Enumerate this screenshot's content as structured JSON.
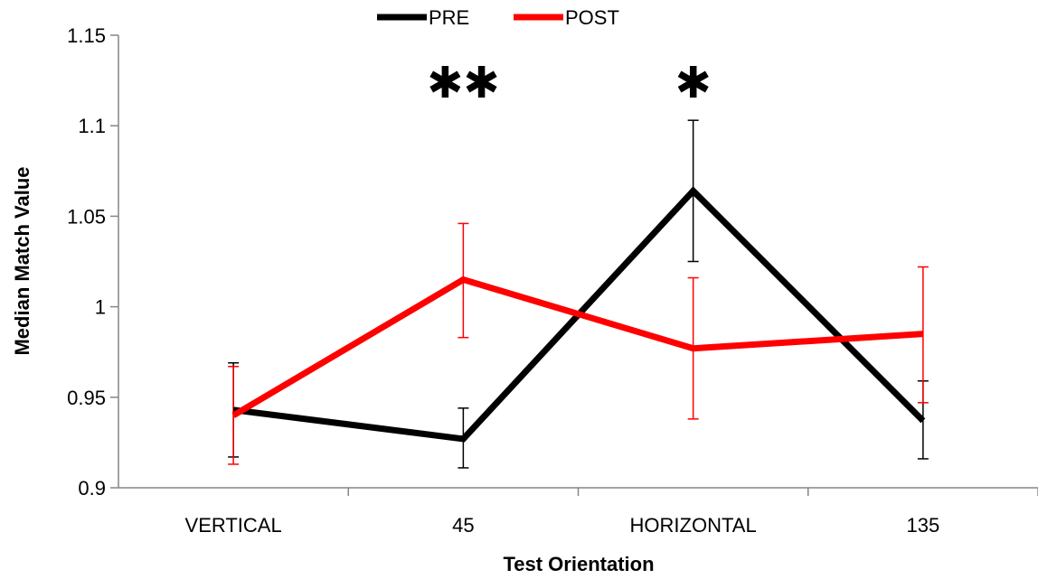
{
  "chart_data": {
    "type": "line",
    "categories": [
      "VERTICAL",
      "45",
      "HORIZONTAL",
      "135"
    ],
    "xlabel": "Test Orientation",
    "ylabel": "Median Match Value",
    "ylim": [
      0.9,
      1.15
    ],
    "yticks": [
      0.9,
      0.95,
      1,
      1.05,
      1.1,
      1.15
    ],
    "ytick_labels": [
      "0.9",
      "0.95",
      "1",
      "1.05",
      "1.1",
      "1.15"
    ],
    "grid": false,
    "legend": "top-center",
    "series": [
      {
        "name": "PRE",
        "color": "#000000",
        "values": [
          0.943,
          0.927,
          1.064,
          0.937
        ],
        "err_low": [
          0.917,
          0.911,
          1.025,
          0.916
        ],
        "err_high": [
          0.969,
          0.944,
          1.103,
          0.959
        ]
      },
      {
        "name": "POST",
        "color": "#ff0000",
        "values": [
          0.94,
          1.015,
          0.977,
          0.985
        ],
        "err_low": [
          0.913,
          0.983,
          0.938,
          0.947
        ],
        "err_high": [
          0.967,
          1.046,
          1.016,
          1.022
        ]
      }
    ],
    "annotations": [
      {
        "category_index": 1,
        "text": "✱✱"
      },
      {
        "category_index": 2,
        "text": "✱"
      }
    ]
  }
}
